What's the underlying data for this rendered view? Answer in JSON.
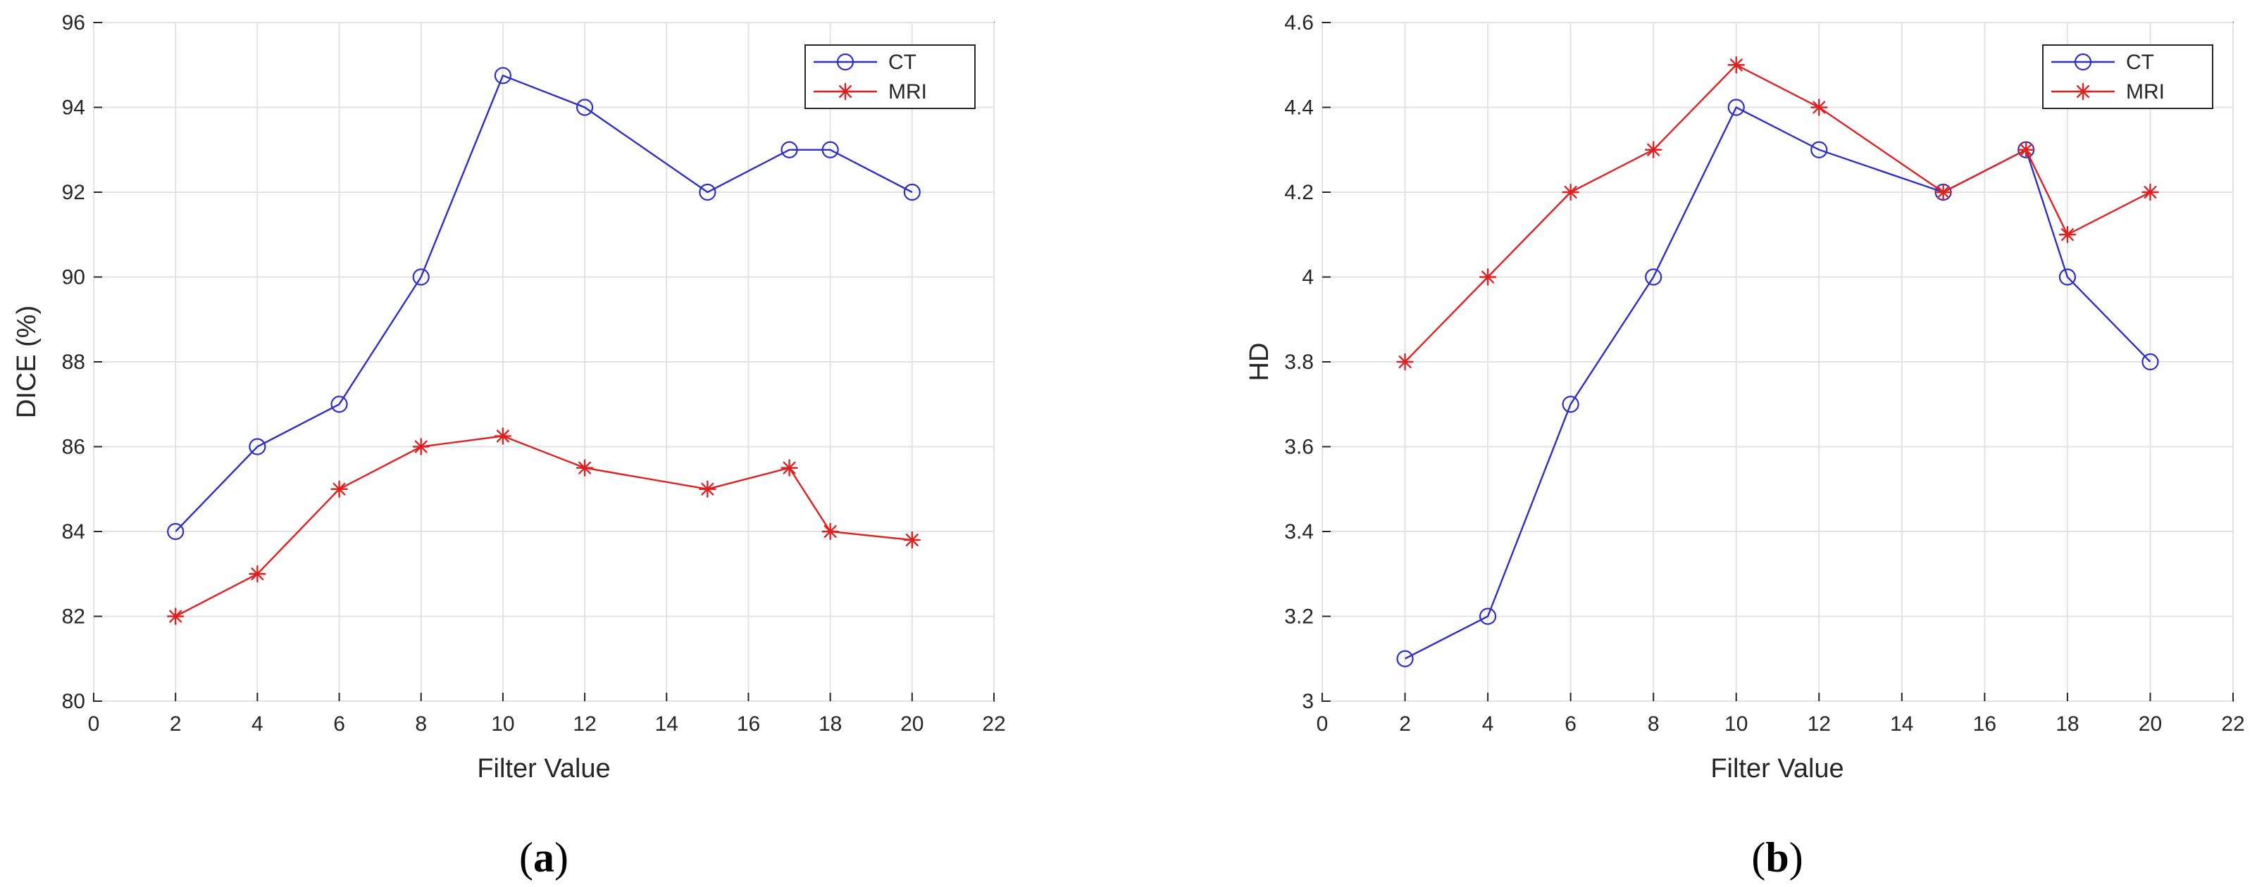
{
  "chart_data": [
    {
      "type": "line",
      "xlabel": "Filter Value",
      "ylabel": "DICE (%)",
      "caption": {
        "open": "(",
        "letter": "a",
        "close": ")"
      },
      "xlim": [
        0,
        22
      ],
      "ylim": [
        80,
        96
      ],
      "xticks": [
        0,
        2,
        4,
        6,
        8,
        10,
        12,
        14,
        16,
        18,
        20,
        22
      ],
      "yticks": [
        80,
        82,
        84,
        86,
        88,
        90,
        92,
        94,
        96
      ],
      "grid": true,
      "legend_position": "top-right",
      "series": [
        {
          "name": "CT",
          "color": "#2e2ec8",
          "marker": "circle",
          "x": [
            2,
            4,
            6,
            8,
            10,
            12,
            15,
            17,
            18,
            20
          ],
          "y": [
            84,
            86,
            87,
            90,
            94.75,
            94,
            92,
            93,
            93,
            92
          ]
        },
        {
          "name": "MRI",
          "color": "#e02020",
          "marker": "asterisk",
          "x": [
            2,
            4,
            6,
            8,
            10,
            12,
            15,
            17,
            18,
            20
          ],
          "y": [
            82,
            83,
            85,
            86,
            86.25,
            85.5,
            85,
            85.5,
            84,
            83.8
          ]
        }
      ]
    },
    {
      "type": "line",
      "xlabel": "Filter Value",
      "ylabel": "HD",
      "caption": {
        "open": "(",
        "letter": "b",
        "close": ")"
      },
      "xlim": [
        0,
        22
      ],
      "ylim": [
        3,
        4.6
      ],
      "xticks": [
        0,
        2,
        4,
        6,
        8,
        10,
        12,
        14,
        16,
        18,
        20,
        22
      ],
      "yticks": [
        3,
        3.2,
        3.4,
        3.6,
        3.8,
        4,
        4.2,
        4.4,
        4.6
      ],
      "grid": true,
      "legend_position": "top-right",
      "series": [
        {
          "name": "CT",
          "color": "#2e2ec8",
          "marker": "circle",
          "x": [
            2,
            4,
            6,
            8,
            10,
            12,
            15,
            17,
            18,
            20
          ],
          "y": [
            3.1,
            3.2,
            3.7,
            4.0,
            4.4,
            4.3,
            4.2,
            4.3,
            4.0,
            3.8
          ]
        },
        {
          "name": "MRI",
          "color": "#e02020",
          "marker": "asterisk",
          "x": [
            2,
            4,
            6,
            8,
            10,
            12,
            15,
            17,
            18,
            20
          ],
          "y": [
            3.8,
            4.0,
            4.2,
            4.3,
            4.5,
            4.4,
            4.2,
            4.3,
            4.1,
            4.2
          ]
        }
      ]
    }
  ]
}
